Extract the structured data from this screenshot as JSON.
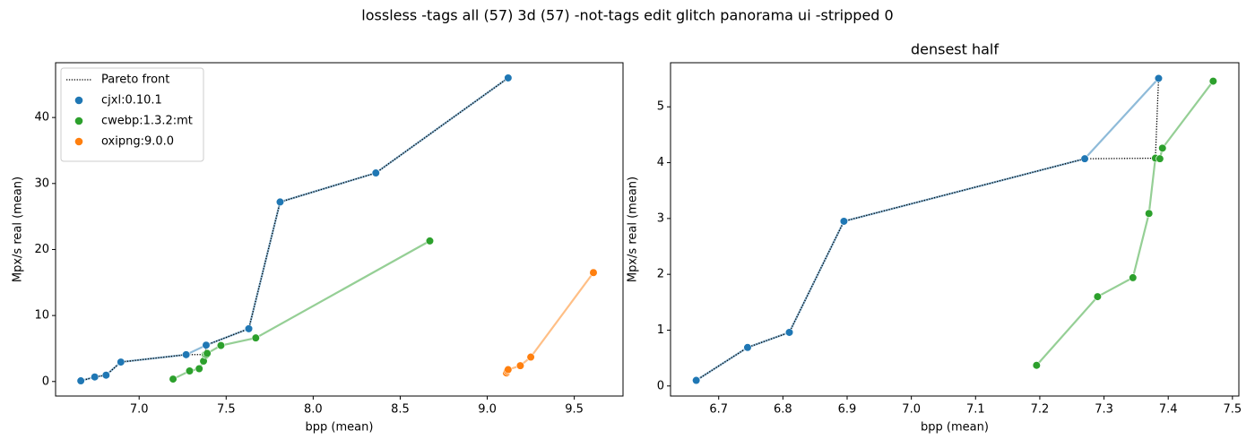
{
  "title": "lossless -tags all (57) 3d (57) -not-tags edit glitch panorama ui -stripped 0",
  "chart_data": [
    {
      "type": "scatter",
      "xlabel": "bpp (mean)",
      "ylabel": "Mpx/s real (mean)",
      "xlim": [
        6.52,
        9.78
      ],
      "ylim": [
        -2.2,
        48.3
      ],
      "xticks": [
        {
          "value": 7,
          "label": "7.0"
        },
        7.5,
        {
          "value": 8,
          "label": "8.0"
        },
        8.5,
        {
          "value": 9,
          "label": "9.0"
        },
        9.5
      ],
      "yticks": [
        0,
        10,
        20,
        30,
        40
      ],
      "legend": "upper left",
      "series": [
        {
          "name": "Pareto front",
          "color": "#000000",
          "line_style": "dotted",
          "x": [
            6.665,
            6.745,
            6.81,
            6.895,
            7.27,
            7.38,
            7.385,
            7.63,
            7.81,
            8.36,
            9.12
          ],
          "values": [
            0.1,
            0.69,
            0.96,
            2.95,
            4.07,
            4.08,
            5.51,
            8.0,
            27.2,
            31.6,
            46.0
          ]
        },
        {
          "name": "cjxl:0.10.1",
          "color": "#1f77b4",
          "x": [
            6.665,
            6.745,
            6.81,
            6.895,
            7.27,
            7.385,
            7.63,
            7.81,
            8.36,
            9.12
          ],
          "values": [
            0.1,
            0.69,
            0.96,
            2.95,
            4.07,
            5.51,
            8.0,
            27.2,
            31.6,
            46.0
          ]
        },
        {
          "name": "cwebp:1.3.2:mt",
          "color": "#2ca02c",
          "x": [
            7.195,
            7.29,
            7.345,
            7.37,
            7.38,
            7.387,
            7.391,
            7.47,
            7.67,
            8.67
          ],
          "values": [
            0.37,
            1.6,
            1.94,
            3.09,
            4.08,
            4.07,
            4.26,
            5.46,
            6.6,
            21.3
          ]
        },
        {
          "name": "oxipng:9.0.0",
          "color": "#ff7f0e",
          "x": [
            9.11,
            9.115,
            9.12,
            9.19,
            9.25,
            9.61
          ],
          "values": [
            1.3,
            1.6,
            1.8,
            2.4,
            3.7,
            16.5
          ]
        }
      ]
    },
    {
      "type": "scatter",
      "title": "densest half",
      "xlabel": "bpp (mean)",
      "ylabel": "Mpx/s real (mean)",
      "xlim": [
        6.625,
        7.51
      ],
      "ylim": [
        -0.18,
        5.79
      ],
      "xticks": [
        6.7,
        6.8,
        6.9,
        {
          "value": 7,
          "label": "7.0"
        },
        7.1,
        7.2,
        7.3,
        7.4,
        7.5
      ],
      "yticks": [
        0,
        1,
        2,
        3,
        4,
        5
      ],
      "series": [
        {
          "color": "#000000",
          "line_style": "dotted",
          "x": [
            6.665,
            6.745,
            6.81,
            6.895,
            7.27,
            7.38,
            7.385
          ],
          "values": [
            0.1,
            0.69,
            0.96,
            2.95,
            4.07,
            4.08,
            5.51
          ]
        },
        {
          "color": "#1f77b4",
          "x": [
            6.665,
            6.745,
            6.81,
            6.895,
            7.27,
            7.385
          ],
          "values": [
            0.1,
            0.69,
            0.96,
            2.95,
            4.07,
            5.51
          ]
        },
        {
          "color": "#2ca02c",
          "x": [
            7.195,
            7.29,
            7.345,
            7.37,
            7.38,
            7.387,
            7.391,
            7.47
          ],
          "values": [
            0.37,
            1.6,
            1.94,
            3.09,
            4.08,
            4.07,
            4.26,
            5.46
          ]
        }
      ]
    }
  ]
}
